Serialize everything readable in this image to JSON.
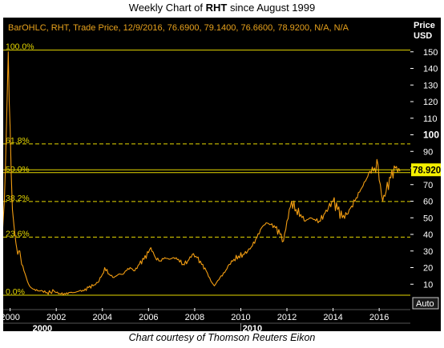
{
  "title": {
    "prefix": "Weekly Chart of ",
    "ticker": "RHT",
    "suffix": " since August 1999"
  },
  "caption": "Chart courtesy of Thomson Reuters Eikon",
  "chart_data": {
    "type": "line",
    "info_line": "BarOHLC, RHT, Trade Price, 12/9/2016, 76.6900, 79.1400, 76.6600, 78.9200, N/A, N/A",
    "y_axis_header": [
      "Price",
      "USD"
    ],
    "ylim": [
      0,
      160
    ],
    "y_ticks": [
      10,
      20,
      30,
      40,
      50,
      60,
      70,
      80,
      90,
      100,
      110,
      120,
      130,
      140,
      150
    ],
    "xlim": [
      1999.7,
      2017.35
    ],
    "x_ticks": [
      {
        "value": 2000,
        "label": "2000"
      },
      {
        "value": 2002,
        "label": "2002"
      },
      {
        "value": 2004,
        "label": "2004"
      },
      {
        "value": 2006,
        "label": "2006"
      },
      {
        "value": 2008,
        "label": "2008"
      },
      {
        "value": 2010,
        "label": "2010"
      },
      {
        "value": 2012,
        "label": "2012"
      },
      {
        "value": 2014,
        "label": "2014"
      },
      {
        "value": 2016,
        "label": "2016"
      }
    ],
    "x_decade_labels": [
      {
        "value": 2001.4,
        "label": "2000"
      },
      {
        "value": 2010.5,
        "label": "2010"
      }
    ],
    "fib_levels": [
      {
        "label": "100.0%",
        "value": 151.0,
        "style": "solid"
      },
      {
        "label": "61.8%",
        "value": 94.5,
        "style": "dashed"
      },
      {
        "label": "50.0%",
        "value": 77.2,
        "style": "solid"
      },
      {
        "label": "38.2%",
        "value": 59.8,
        "style": "dashed"
      },
      {
        "label": "23.6%",
        "value": 38.4,
        "style": "dashed"
      },
      {
        "label": "0.0%",
        "value": 3.4,
        "style": "solid"
      }
    ],
    "last_price": {
      "label": "78.920",
      "value": 78.92
    },
    "auto_label": "Auto",
    "series": [
      {
        "x": [
          1999.62,
          1999.75,
          1999.85,
          1999.92,
          1999.96,
          2000.0,
          2000.05,
          2000.1,
          2000.17,
          2000.25,
          2000.33,
          2000.42,
          2000.5,
          2000.6,
          2000.7,
          2000.8,
          2000.9,
          2001.0,
          2001.2,
          2001.4,
          2001.6,
          2001.75,
          2001.9,
          2002.0,
          2002.2,
          2002.4,
          2002.6,
          2002.8,
          2003.0,
          2003.2,
          2003.4,
          2003.6,
          2003.8,
          2004.0,
          2004.1,
          2004.3,
          2004.5,
          2004.7,
          2004.9,
          2005.0,
          2005.2,
          2005.4,
          2005.6,
          2005.8,
          2006.0,
          2006.1,
          2006.3,
          2006.5,
          2006.7,
          2006.9,
          2007.1,
          2007.3,
          2007.5,
          2007.7,
          2007.9,
          2008.1,
          2008.3,
          2008.5,
          2008.7,
          2008.85,
          2008.95,
          2009.1,
          2009.3,
          2009.5,
          2009.7,
          2009.9,
          2010.1,
          2010.3,
          2010.5,
          2010.7,
          2010.9,
          2011.1,
          2011.3,
          2011.5,
          2011.7,
          2011.85,
          2012.0,
          2012.2,
          2012.4,
          2012.6,
          2012.8,
          2013.0,
          2013.2,
          2013.4,
          2013.6,
          2013.8,
          2014.0,
          2014.2,
          2014.4,
          2014.6,
          2014.8,
          2015.0,
          2015.2,
          2015.4,
          2015.6,
          2015.8,
          2015.95,
          2016.05,
          2016.15,
          2016.3,
          2016.5,
          2016.7,
          2016.9
        ],
        "y": [
          30,
          60,
          110,
          150,
          120,
          105,
          75,
          55,
          45,
          35,
          28,
          30,
          22,
          18,
          14,
          10,
          8,
          7,
          6,
          6,
          5,
          5,
          6,
          5,
          4,
          4,
          5,
          5,
          6,
          6,
          8,
          9,
          11,
          16,
          20,
          16,
          14,
          16,
          16,
          18,
          20,
          18,
          22,
          25,
          29,
          32,
          26,
          24,
          26,
          25,
          26,
          25,
          22,
          24,
          28,
          26,
          22,
          18,
          12,
          9,
          11,
          14,
          17,
          22,
          25,
          27,
          28,
          30,
          33,
          38,
          44,
          47,
          46,
          44,
          40,
          36,
          48,
          60,
          55,
          52,
          48,
          50,
          49,
          48,
          52,
          56,
          60,
          55,
          50,
          52,
          57,
          62,
          67,
          72,
          78,
          80,
          82,
          70,
          60,
          66,
          74,
          80,
          78
        ]
      }
    ]
  }
}
